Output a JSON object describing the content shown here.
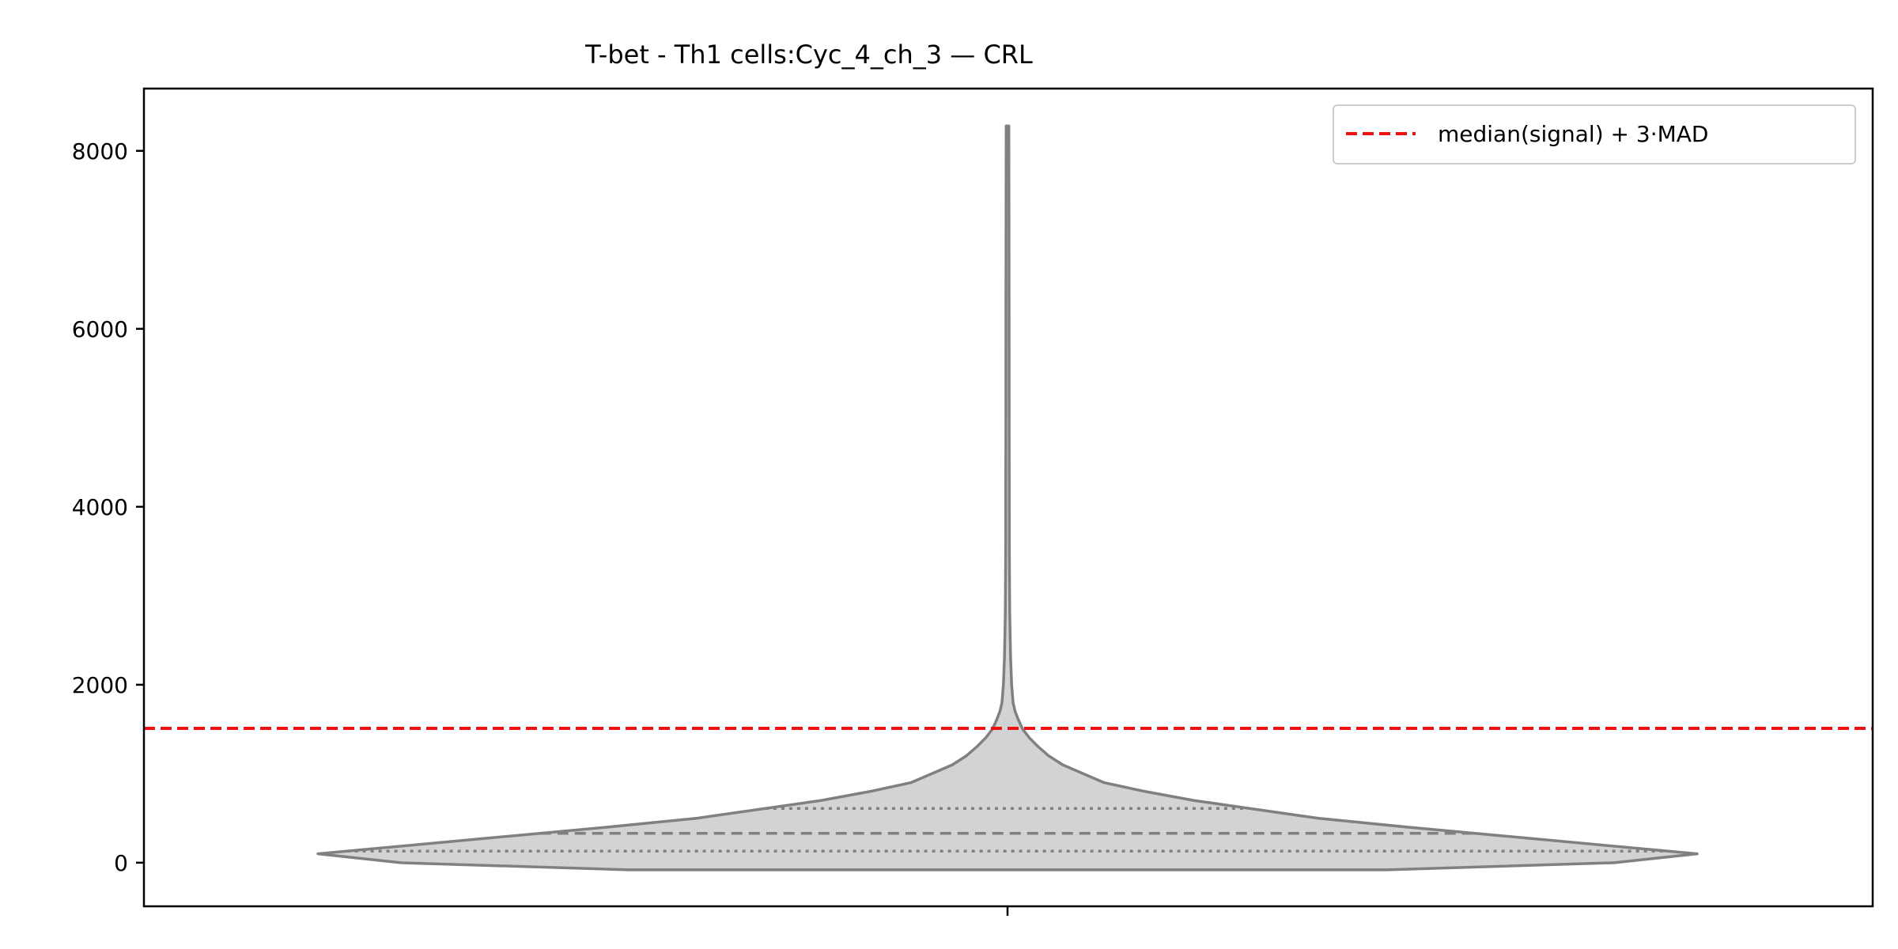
{
  "chart_data": {
    "type": "violin",
    "title": "T-bet - Th1 cells:Cyc_4_ch_3 — CRL",
    "xlabel": "",
    "ylabel": "",
    "ylim": [
      -490,
      8700
    ],
    "yticks": [
      0,
      2000,
      4000,
      6000,
      8000
    ],
    "grid": false,
    "legend_position": "top-right",
    "violin": {
      "min": -80,
      "max": 8280,
      "q1": 130,
      "median": 330,
      "q3": 610,
      "density": [
        [
          -80,
          0.55
        ],
        [
          0,
          0.88
        ],
        [
          100,
          1.0
        ],
        [
          200,
          0.86
        ],
        [
          300,
          0.72
        ],
        [
          400,
          0.58
        ],
        [
          500,
          0.45
        ],
        [
          600,
          0.36
        ],
        [
          700,
          0.27
        ],
        [
          800,
          0.2
        ],
        [
          900,
          0.14
        ],
        [
          1000,
          0.11
        ],
        [
          1100,
          0.08
        ],
        [
          1200,
          0.06
        ],
        [
          1300,
          0.045
        ],
        [
          1400,
          0.032
        ],
        [
          1500,
          0.022
        ],
        [
          1600,
          0.016
        ],
        [
          1700,
          0.011
        ],
        [
          1800,
          0.008
        ],
        [
          2000,
          0.006
        ],
        [
          2300,
          0.0045
        ],
        [
          2800,
          0.0032
        ],
        [
          3500,
          0.0026
        ],
        [
          5000,
          0.0024
        ],
        [
          7000,
          0.0022
        ],
        [
          8280,
          0.002
        ]
      ]
    },
    "threshold": {
      "label": "median(signal) + 3·MAD",
      "value": 1510
    },
    "colors": {
      "violin_fill": "#d3d3d3",
      "violin_edge": "#808080",
      "threshold": "#ee1111"
    }
  }
}
